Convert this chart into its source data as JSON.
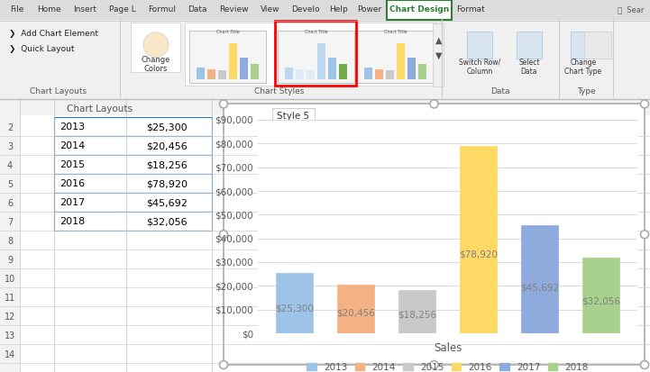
{
  "years": [
    "2013",
    "2014",
    "2015",
    "2016",
    "2017",
    "2018"
  ],
  "values": [
    25300,
    20456,
    18256,
    78920,
    45692,
    32056
  ],
  "bar_colors": [
    "#9DC3E6",
    "#F4B183",
    "#C9C9C9",
    "#FFD966",
    "#8FAADC",
    "#A9D18E"
  ],
  "value_labels": [
    "$25,300",
    "$20,456",
    "$18,256",
    "$78,920",
    "$45,692",
    "$32,056"
  ],
  "value_label_color": "#808080",
  "xlabel": "Sales",
  "ylim": [
    0,
    90000
  ],
  "yticks": [
    0,
    10000,
    20000,
    30000,
    40000,
    50000,
    60000,
    70000,
    80000,
    90000
  ],
  "ytick_labels": [
    "$0",
    "$10,000",
    "$20,000",
    "$30,000",
    "$40,000",
    "$50,000",
    "$60,000",
    "$70,000",
    "$80,000",
    "$90,000"
  ],
  "grid_color": "#D9D9D9",
  "chart_bg": "#FFFFFF",
  "ui_bg": "#F0F0F0",
  "ribbon_bg": "#E8E8E8",
  "legend_labels": [
    "2013",
    "2014",
    "2015",
    "2016",
    "2017",
    "2018"
  ],
  "table_rows": [
    [
      "2",
      "2013",
      "$25,300"
    ],
    [
      "3",
      "2014",
      "$20,456"
    ],
    [
      "4",
      "2015",
      "$18,256"
    ],
    [
      "5",
      "2016",
      "$78,920"
    ],
    [
      "6",
      "2017",
      "$45,692"
    ],
    [
      "7",
      "2018",
      "$32,056"
    ]
  ],
  "nav_tabs": [
    "File",
    "Home",
    "Insert",
    "Page L",
    "Formul",
    "Data",
    "Review",
    "View",
    "Develo",
    "Help",
    "Power",
    "Chart Design",
    "Format"
  ],
  "active_tab": "Chart Design",
  "chart_title_box": "Style 5",
  "ribbon_labels": [
    "Chart Layouts",
    "Chart Styles",
    "Data",
    "Type"
  ],
  "ribbon_btns_left": [
    "Add Chart Element",
    "Quick Layout"
  ],
  "ribbon_btns_right": [
    "Switch Row/\nColumn",
    "Select\nData",
    "Change\nChart Type"
  ],
  "change_colors_label": "Change\nColors"
}
